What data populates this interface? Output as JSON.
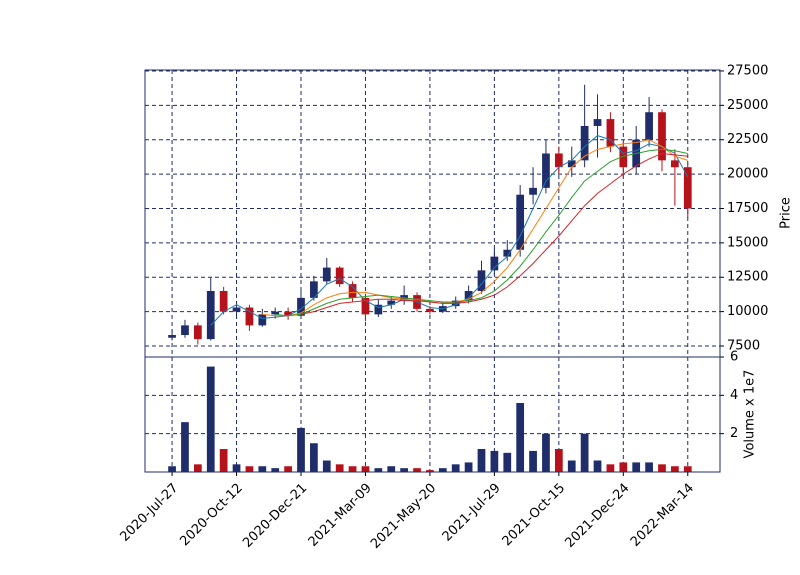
{
  "chart_data": {
    "type": "candlestick",
    "up_color": "#1f2d6b",
    "down_color": "#b5121b",
    "frame_color": "#1f2d6b",
    "grid": true,
    "x": [
      0,
      10,
      20,
      30,
      40,
      50,
      60,
      70,
      80,
      90,
      100,
      110,
      120,
      130,
      140,
      150,
      160,
      170,
      180,
      190,
      200,
      210,
      220,
      230,
      240,
      250,
      260,
      270,
      280,
      290,
      300,
      310,
      320,
      330,
      340,
      350,
      360,
      370,
      380,
      390,
      400
    ],
    "xlim": [
      -21,
      425
    ],
    "xticks": [
      {
        "value": 0,
        "label": "2020-Jul-27"
      },
      {
        "value": 50,
        "label": "2020-Oct-12"
      },
      {
        "value": 100,
        "label": "2020-Dec-21"
      },
      {
        "value": 150,
        "label": "2021-Mar-09"
      },
      {
        "value": 200,
        "label": "2021-May-20"
      },
      {
        "value": 250,
        "label": "2021-Jul-29"
      },
      {
        "value": 300,
        "label": "2021-Oct-15"
      },
      {
        "value": 350,
        "label": "2021-Dec-24"
      },
      {
        "value": 400,
        "label": "2022-Mar-14"
      }
    ],
    "open": [
      8100,
      8300,
      9000,
      8000,
      11500,
      10000,
      10300,
      9000,
      9800,
      10000,
      9700,
      11000,
      12200,
      13200,
      12000,
      11000,
      9800,
      10500,
      10800,
      11200,
      10200,
      10000,
      10400,
      10800,
      11500,
      13000,
      14000,
      14500,
      18500,
      19000,
      21500,
      20500,
      21000,
      23500,
      24000,
      22000,
      20500,
      22500,
      24500,
      21000,
      20500
    ],
    "high": [
      8700,
      9400,
      9200,
      12500,
      11800,
      10600,
      10500,
      10200,
      10300,
      10300,
      11600,
      12600,
      13900,
      13300,
      12200,
      11300,
      10900,
      11100,
      11900,
      11400,
      10400,
      10700,
      11100,
      11900,
      13700,
      14600,
      15200,
      19200,
      20500,
      22500,
      22000,
      22000,
      26500,
      25800,
      24500,
      22300,
      23500,
      25600,
      24700,
      21800,
      20800
    ],
    "low": [
      7900,
      8100,
      7600,
      7900,
      9800,
      9700,
      8600,
      8900,
      9500,
      9400,
      9500,
      10800,
      12000,
      11800,
      10700,
      9300,
      9600,
      10200,
      10500,
      10000,
      9800,
      9900,
      10200,
      10600,
      11300,
      12700,
      13700,
      14000,
      17800,
      18600,
      20000,
      19800,
      20500,
      21200,
      21600,
      19800,
      20000,
      22000,
      20200,
      17700,
      16800
    ],
    "close": [
      8300,
      9000,
      8000,
      11500,
      10000,
      10300,
      9000,
      9800,
      10000,
      9700,
      11000,
      12200,
      13200,
      12000,
      11000,
      9800,
      10500,
      10800,
      11200,
      10200,
      10000,
      10400,
      10800,
      11500,
      13000,
      14000,
      14500,
      18500,
      19000,
      21500,
      20500,
      21000,
      23500,
      24000,
      22000,
      20500,
      22500,
      24500,
      21000,
      20500,
      17500
    ],
    "ylim": [
      6700,
      27570
    ],
    "yticks": [
      7500,
      10000,
      12500,
      15000,
      17500,
      20000,
      22500,
      25000,
      27500
    ],
    "ylabel": "Price",
    "moving_averages": [
      {
        "color": "#1f77b4",
        "values": [
          null,
          null,
          null,
          9000,
          10000,
          10500,
          10000,
          9500,
          9600,
          9700,
          10200,
          11000,
          12000,
          12400,
          11800,
          10800,
          10300,
          10500,
          10900,
          10700,
          10300,
          10200,
          10500,
          11000,
          12000,
          13200,
          14000,
          15500,
          17500,
          19500,
          20500,
          21000,
          22000,
          22800,
          22500,
          21500,
          21700,
          22200,
          22000,
          21500,
          19800
        ]
      },
      {
        "color": "#ff7f0e",
        "values": [
          null,
          null,
          null,
          null,
          null,
          null,
          null,
          9800,
          9700,
          9700,
          9900,
          10500,
          11000,
          11300,
          11400,
          11400,
          11200,
          11000,
          10900,
          10900,
          10700,
          10600,
          10700,
          10900,
          11400,
          12200,
          13200,
          14500,
          16000,
          17500,
          19000,
          20500,
          21300,
          21800,
          22000,
          22200,
          22300,
          22500,
          22000,
          21300,
          21000
        ]
      },
      {
        "color": "#2ca02c",
        "values": [
          null,
          null,
          null,
          null,
          null,
          null,
          null,
          null,
          9800,
          9700,
          9800,
          10200,
          10600,
          10900,
          11000,
          11100,
          11200,
          11100,
          11000,
          10900,
          10800,
          10700,
          10700,
          10800,
          11000,
          11500,
          12300,
          13300,
          14500,
          15800,
          17000,
          18300,
          19500,
          20200,
          20900,
          21300,
          21500,
          21700,
          21800,
          21700,
          21500
        ]
      },
      {
        "color": "#d62728",
        "values": [
          null,
          null,
          null,
          null,
          null,
          null,
          null,
          null,
          null,
          null,
          9800,
          10000,
          10300,
          10600,
          10700,
          10800,
          10900,
          10900,
          10800,
          10800,
          10700,
          10600,
          10600,
          10700,
          10900,
          11200,
          11800,
          12600,
          13500,
          14500,
          15500,
          16600,
          17700,
          18600,
          19300,
          20000,
          20600,
          21100,
          21500,
          21400,
          21300
        ]
      }
    ],
    "volume": {
      "values": [
        0.3,
        2.6,
        0.4,
        5.5,
        1.2,
        0.4,
        0.3,
        0.3,
        0.2,
        0.3,
        2.3,
        1.5,
        0.6,
        0.4,
        0.3,
        0.3,
        0.2,
        0.3,
        0.2,
        0.2,
        0.1,
        0.2,
        0.4,
        0.5,
        1.2,
        1.1,
        1.0,
        3.6,
        1.1,
        2.0,
        1.2,
        0.6,
        2.0,
        0.6,
        0.4,
        0.5,
        0.5,
        0.5,
        0.4,
        0.3,
        0.3
      ],
      "ylim": [
        0,
        6
      ],
      "yticks": [
        2,
        4,
        6
      ],
      "ylabel": "Volume x 1e7"
    }
  }
}
